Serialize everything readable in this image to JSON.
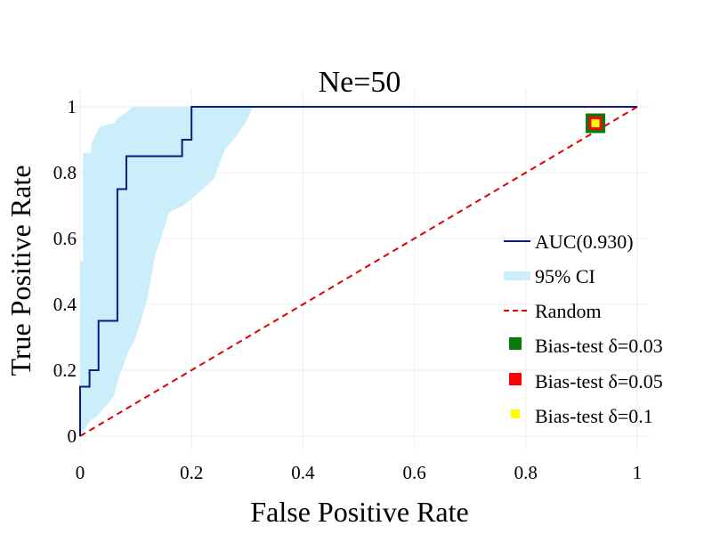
{
  "chart_data": {
    "type": "line",
    "title": "Ne=50",
    "xlabel": "False Positive Rate",
    "ylabel": "True Positive Rate",
    "xlim": [
      0,
      1
    ],
    "ylim": [
      0,
      1
    ],
    "xticks": [
      "0",
      "0.2",
      "0.4",
      "0.6",
      "0.8",
      "1"
    ],
    "yticks": [
      "0",
      "0.2",
      "0.4",
      "0.6",
      "0.8",
      "1"
    ],
    "grid": true,
    "legend_position": "right",
    "roc": {
      "name": "AUC(0.930)",
      "color": "#0d1a80",
      "x": [
        0,
        0,
        0.017,
        0.017,
        0.033,
        0.033,
        0.067,
        0.067,
        0.083,
        0.083,
        0.183,
        0.183,
        0.2,
        0.2,
        1
      ],
      "y": [
        0,
        0.15,
        0.15,
        0.2,
        0.2,
        0.35,
        0.35,
        0.75,
        0.75,
        0.85,
        0.85,
        0.9,
        0.9,
        1,
        1
      ]
    },
    "ci": {
      "name": "95% CI",
      "color": "#cbeefa",
      "upper": {
        "x": [
          0,
          0.005,
          0.005,
          0.02,
          0.02,
          0.035,
          0.06,
          0.065,
          0.07,
          0.08,
          0.095,
          0.115,
          0.31,
          1
        ],
        "y": [
          0.53,
          0.53,
          0.86,
          0.86,
          0.89,
          0.94,
          0.95,
          0.96,
          0.97,
          0.98,
          1,
          1,
          1,
          1
        ]
      },
      "lower": {
        "x": [
          0.31,
          0.3,
          0.28,
          0.26,
          0.24,
          0.2,
          0.185,
          0.16,
          0.145,
          0.135,
          0.125,
          0.12,
          0.1,
          0.085,
          0.07,
          0.06,
          0.045,
          0.03,
          0.02,
          0.015,
          0.0
        ],
        "y": [
          1,
          0.96,
          0.91,
          0.87,
          0.78,
          0.72,
          0.7,
          0.68,
          0.6,
          0.55,
          0.46,
          0.41,
          0.3,
          0.25,
          0.18,
          0.12,
          0.09,
          0.06,
          0.05,
          0.04,
          0.0
        ]
      }
    },
    "random": {
      "name": "Random",
      "color": "#e00000",
      "x": [
        0,
        1
      ],
      "y": [
        0,
        1
      ]
    },
    "bias_tests": [
      {
        "name": "Bias-test δ=0.03",
        "color": "#0a7a0a",
        "x": 0.925,
        "y": 0.95
      },
      {
        "name": "Bias-test δ=0.05",
        "color": "#ff0000",
        "x": 0.925,
        "y": 0.95
      },
      {
        "name": "Bias-test δ=0.1",
        "color": "#ffff00",
        "x": 0.925,
        "y": 0.95
      }
    ]
  }
}
